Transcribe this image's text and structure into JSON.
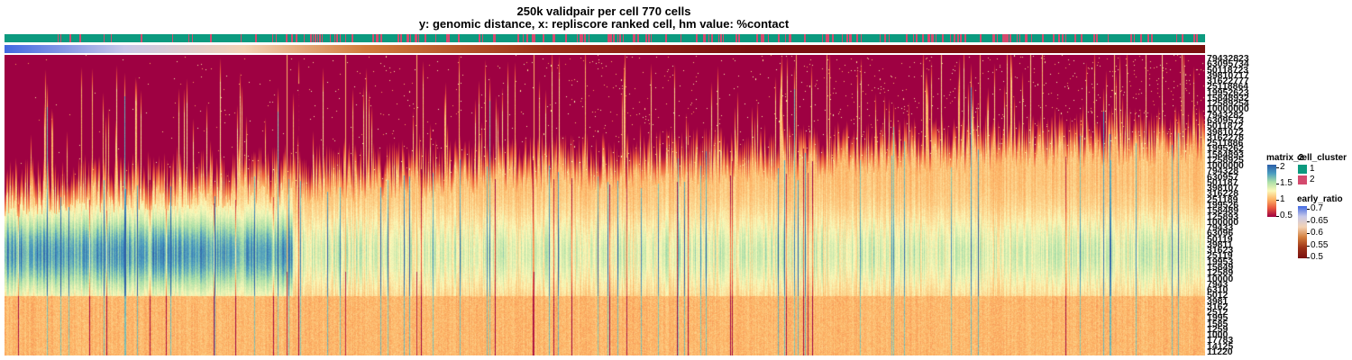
{
  "title_line1": "250k validpair per cell 770 cells",
  "title_line2": "y: genomic distance, x: repliscore ranked cell, hm value: %contact",
  "chart_data": {
    "type": "heatmap",
    "n_cells": 770,
    "x_axis": "repliscore ranked cell",
    "y_axis": "genomic distance",
    "value_label": "%contact",
    "row_labels": [
      "79432823",
      "63095734",
      "50118723",
      "39810717",
      "31622777",
      "25118864",
      "19952623",
      "15848932",
      "12589254",
      "10000000",
      "7943282",
      "6309573",
      "5011872",
      "3981072",
      "3162278",
      "2511886",
      "1995262",
      "1584893",
      "1258925",
      "1000000",
      "794328",
      "630957",
      "501187",
      "398107",
      "316228",
      "251189",
      "199526",
      "158489",
      "125893",
      "100000",
      "79433",
      "63096",
      "50119",
      "39811",
      "31623",
      "25119",
      "19953",
      "15849",
      "12589",
      "10000",
      "7943",
      "6310",
      "5012",
      "3981",
      "3162",
      "2512",
      "1995",
      "1585",
      "1259",
      "1000"
    ],
    "row_labels_shown_end": [
      "17783",
      "14125",
      "11220"
    ],
    "color_scale": {
      "name": "matrix_2",
      "ticks": [
        "2",
        "1.5",
        "1",
        "0.5"
      ],
      "colors": [
        "#2b5ea8",
        "#4a9cc0",
        "#ace0a8",
        "#fbf8b8",
        "#fdb365",
        "#e8553c",
        "#9e0142"
      ]
    },
    "annotations": {
      "cell_cluster": {
        "title": "cell_cluster",
        "levels": [
          {
            "label": "1",
            "color": "#0c9a7f"
          },
          {
            "label": "2",
            "color": "#d44a6e"
          }
        ]
      },
      "early_ratio": {
        "title": "early_ratio",
        "ticks": [
          "0.7",
          "0.65",
          "0.6",
          "0.55",
          "0.5"
        ],
        "colors": [
          "#4169e1",
          "#c8c8e8",
          "#f3d2b4",
          "#d27d3c",
          "#9c3218",
          "#7a1010"
        ]
      }
    }
  }
}
